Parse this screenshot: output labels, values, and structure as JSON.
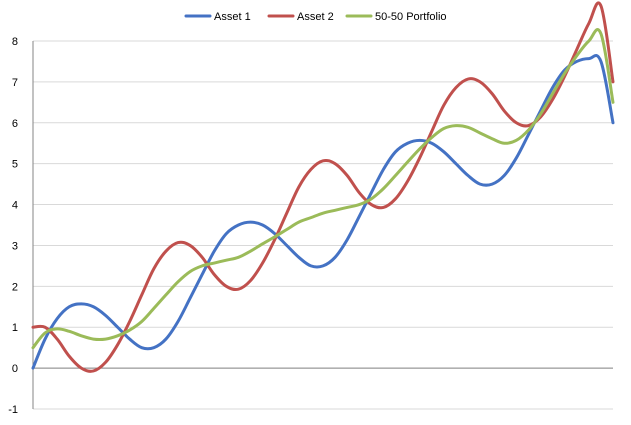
{
  "chart_data": {
    "type": "line",
    "title": "",
    "xlabel": "",
    "ylabel": "",
    "ylim": [
      -1,
      8
    ],
    "yticks": [
      -1,
      0,
      1,
      2,
      3,
      4,
      5,
      6,
      7,
      8
    ],
    "grid": true,
    "legend_position": "top",
    "x": [
      0,
      0.25,
      0.5,
      0.75,
      1,
      1.25,
      1.5,
      1.75,
      2,
      2.25,
      2.5,
      2.75,
      3,
      3.25,
      3.5,
      3.75,
      4,
      4.25,
      4.5,
      4.75,
      5,
      5.25,
      5.5,
      5.75,
      6,
      6.25,
      6.5,
      6.75,
      7,
      7.25,
      7.5,
      7.75,
      8,
      8.25,
      8.5,
      8.75,
      9,
      9.25,
      9.5,
      9.75,
      10,
      10.25,
      10.5,
      10.75,
      11,
      11.25,
      11.5,
      11.75,
      12
    ],
    "series": [
      {
        "name": "Asset 1",
        "color": "#4472c4",
        "values": [
          0,
          0.71,
          1.21,
          1.5,
          1.57,
          1.5,
          1.29,
          1.0,
          0.71,
          0.5,
          0.5,
          0.71,
          1.14,
          1.71,
          2.29,
          2.86,
          3.29,
          3.5,
          3.57,
          3.5,
          3.29,
          3.0,
          2.71,
          2.5,
          2.5,
          2.71,
          3.14,
          3.71,
          4.29,
          4.86,
          5.29,
          5.5,
          5.57,
          5.5,
          5.29,
          5.0,
          4.71,
          4.5,
          4.5,
          4.71,
          5.14,
          5.71,
          6.29,
          6.86,
          7.29,
          7.5,
          7.57,
          7.5,
          6.0
        ]
      },
      {
        "name": "Asset 2",
        "color": "#c0504d",
        "values": [
          1,
          1.0,
          0.71,
          0.29,
          0.0,
          -0.07,
          0.14,
          0.57,
          1.14,
          1.79,
          2.43,
          2.86,
          3.07,
          3.0,
          2.71,
          2.29,
          2.0,
          1.93,
          2.14,
          2.57,
          3.14,
          3.79,
          4.43,
          4.86,
          5.07,
          5.0,
          4.71,
          4.29,
          4.0,
          3.93,
          4.14,
          4.57,
          5.14,
          5.79,
          6.43,
          6.86,
          7.07,
          7.0,
          6.71,
          6.29,
          6.0,
          5.93,
          6.14,
          6.57,
          7.14,
          7.79,
          8.43,
          8.86,
          7.0
        ]
      },
      {
        "name": "50-50 Portfolio",
        "color": "#9bbb59",
        "values": [
          0.5,
          0.86,
          0.96,
          0.9,
          0.79,
          0.71,
          0.71,
          0.79,
          0.93,
          1.14,
          1.46,
          1.79,
          2.11,
          2.36,
          2.5,
          2.57,
          2.64,
          2.71,
          2.86,
          3.04,
          3.21,
          3.39,
          3.57,
          3.68,
          3.79,
          3.86,
          3.93,
          4.0,
          4.14,
          4.39,
          4.71,
          5.04,
          5.36,
          5.64,
          5.86,
          5.93,
          5.89,
          5.75,
          5.61,
          5.5,
          5.57,
          5.82,
          6.21,
          6.71,
          7.21,
          7.64,
          8.0,
          8.18,
          6.5
        ]
      }
    ]
  }
}
